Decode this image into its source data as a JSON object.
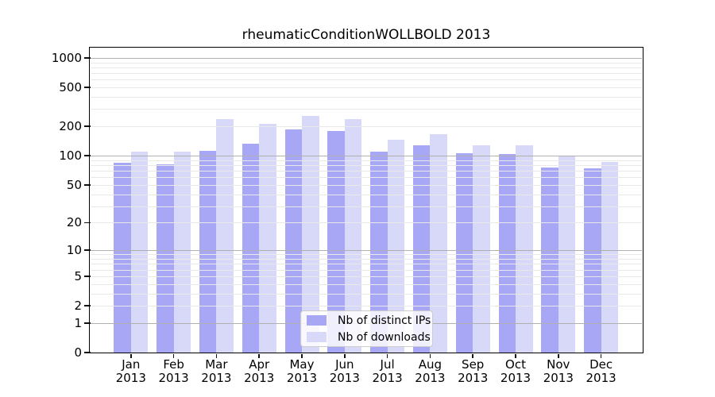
{
  "chart_data": {
    "type": "bar",
    "title": "rheumaticConditionWOLLBOLD 2013",
    "y_scale": "log10(1+value), 0 at baseline",
    "ylim": [
      0,
      1000
    ],
    "grid": "horizontal; light minor log lines, darker lines at powers of 10",
    "legend_position": "bottom-center inside plot",
    "y_ticks": [
      0,
      1,
      2,
      5,
      10,
      20,
      50,
      100,
      200,
      500,
      1000
    ],
    "categories": [
      {
        "month": "Jan",
        "year": "2013"
      },
      {
        "month": "Feb",
        "year": "2013"
      },
      {
        "month": "Mar",
        "year": "2013"
      },
      {
        "month": "Apr",
        "year": "2013"
      },
      {
        "month": "May",
        "year": "2013"
      },
      {
        "month": "Jun",
        "year": "2013"
      },
      {
        "month": "Jul",
        "year": "2013"
      },
      {
        "month": "Aug",
        "year": "2013"
      },
      {
        "month": "Sep",
        "year": "2013"
      },
      {
        "month": "Oct",
        "year": "2013"
      },
      {
        "month": "Nov",
        "year": "2013"
      },
      {
        "month": "Dec",
        "year": "2013"
      }
    ],
    "series": [
      {
        "name": "Nb of distinct IPs",
        "color": "#a7a7f5",
        "values": [
          85,
          82,
          113,
          133,
          186,
          179,
          111,
          129,
          105,
          103,
          76,
          74
        ]
      },
      {
        "name": "Nb of downloads",
        "color": "#d8d8f9",
        "values": [
          111,
          110,
          235,
          212,
          256,
          235,
          146,
          165,
          127,
          129,
          99,
          86
        ]
      }
    ]
  },
  "colors": {
    "minor_grid": "#e9e9e9",
    "major_grid": "#b0b0b0",
    "axis": "#000000",
    "legend_border": "#cccccc"
  }
}
